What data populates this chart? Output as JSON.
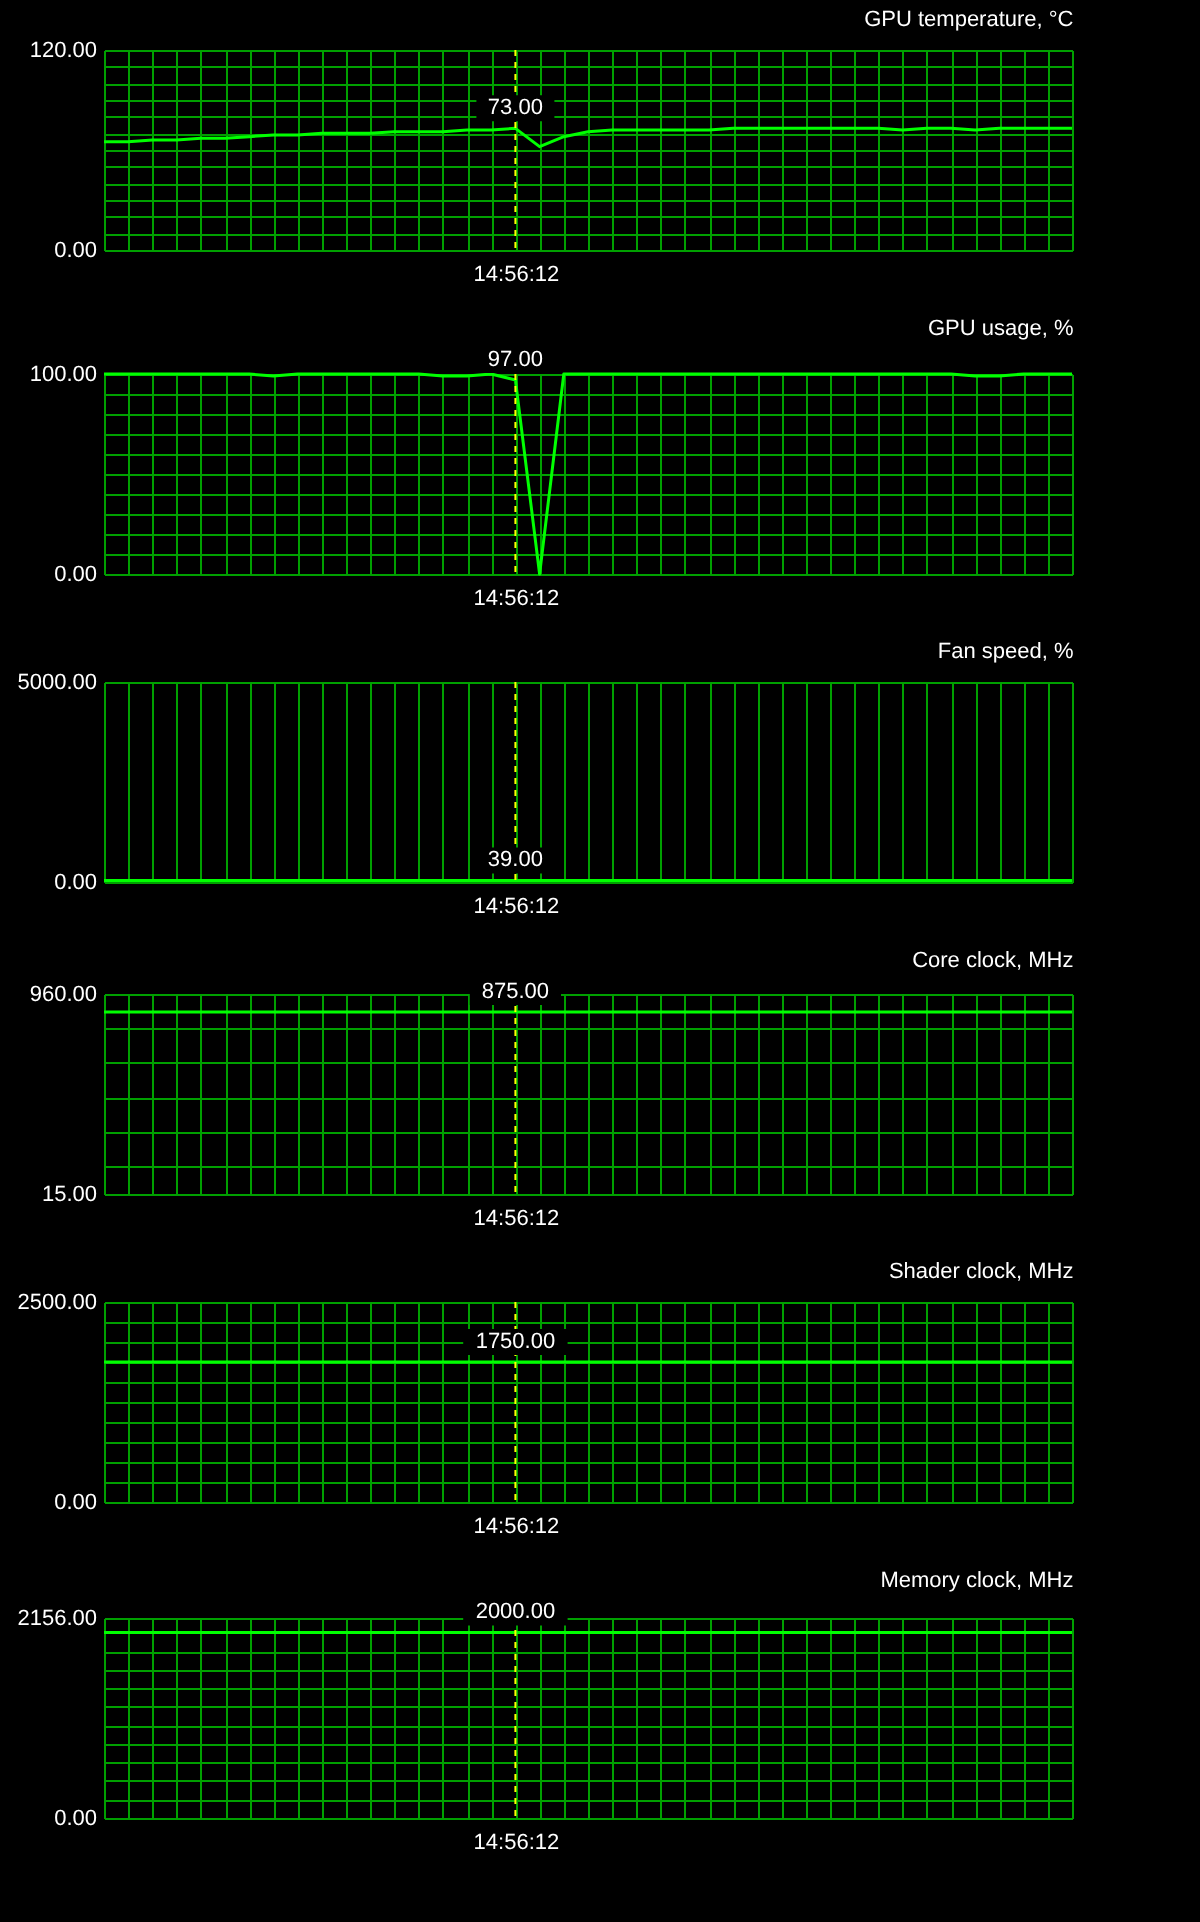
{
  "chart_data": [
    {
      "type": "line",
      "title": "GPU temperature, °C",
      "grid": true,
      "ylim": [
        0,
        120
      ],
      "yticks": [
        {
          "value": 0,
          "label": "0.00"
        },
        {
          "value": 10,
          "label": null
        },
        {
          "value": 20,
          "label": null
        },
        {
          "value": 30,
          "label": null
        },
        {
          "value": 40,
          "label": null
        },
        {
          "value": 50,
          "label": null
        },
        {
          "value": 60,
          "label": null
        },
        {
          "value": 70,
          "label": null
        },
        {
          "value": 80,
          "label": null
        },
        {
          "value": 90,
          "label": null
        },
        {
          "value": 100,
          "label": null
        },
        {
          "value": 110,
          "label": null
        },
        {
          "value": 120,
          "label": "120.00"
        }
      ],
      "categories": [
        null,
        null,
        null,
        null,
        null,
        null,
        null,
        null,
        null,
        null,
        null,
        null,
        null,
        null,
        null,
        null,
        null,
        "14:56:12",
        null,
        null,
        null,
        null,
        null,
        null,
        null,
        null,
        null,
        null,
        null,
        null,
        null,
        null,
        null,
        null,
        null,
        null,
        null,
        null,
        null,
        null,
        null
      ],
      "ref_lines": [
        {
          "axis": "x",
          "value": "14:56:12",
          "color": "#ffff00",
          "line_style": "dashed"
        }
      ],
      "series": [
        {
          "color": "#00ff00",
          "values": [
            65,
            65,
            66,
            66,
            67,
            67,
            68,
            69,
            69,
            70,
            70,
            70,
            71,
            71,
            71,
            72,
            72,
            73,
            62,
            68,
            71,
            72,
            72,
            72,
            72,
            72,
            73,
            73,
            73,
            73,
            73,
            73,
            73,
            72,
            73,
            73,
            72,
            73,
            73,
            73,
            73
          ],
          "value_labels": [
            null,
            null,
            null,
            null,
            null,
            null,
            null,
            null,
            null,
            null,
            null,
            null,
            null,
            null,
            null,
            null,
            null,
            "73.00",
            null,
            null,
            null,
            null,
            null,
            null,
            null,
            null,
            null,
            null,
            null,
            null,
            null,
            null,
            null,
            null,
            null,
            null,
            null,
            null,
            null,
            null,
            null
          ]
        }
      ]
    },
    {
      "type": "line",
      "title": "GPU usage, %",
      "grid": true,
      "ylim": [
        0,
        100
      ],
      "yticks": [
        {
          "value": 0,
          "label": "0.00"
        },
        {
          "value": 10,
          "label": null
        },
        {
          "value": 20,
          "label": null
        },
        {
          "value": 30,
          "label": null
        },
        {
          "value": 40,
          "label": null
        },
        {
          "value": 50,
          "label": null
        },
        {
          "value": 60,
          "label": null
        },
        {
          "value": 70,
          "label": null
        },
        {
          "value": 80,
          "label": null
        },
        {
          "value": 90,
          "label": null
        },
        {
          "value": 100,
          "label": "100.00"
        }
      ],
      "categories": [
        null,
        null,
        null,
        null,
        null,
        null,
        null,
        null,
        null,
        null,
        null,
        null,
        null,
        null,
        null,
        null,
        null,
        "14:56:12",
        null,
        null,
        null,
        null,
        null,
        null,
        null,
        null,
        null,
        null,
        null,
        null,
        null,
        null,
        null,
        null,
        null,
        null,
        null,
        null,
        null,
        null,
        null
      ],
      "ref_lines": [
        {
          "axis": "x",
          "value": "14:56:12",
          "color": "#ffff00",
          "line_style": "dashed"
        }
      ],
      "series": [
        {
          "color": "#00ff00",
          "values": [
            100,
            100,
            100,
            100,
            100,
            100,
            100,
            99,
            100,
            100,
            100,
            100,
            100,
            100,
            99,
            99,
            100,
            97,
            0,
            100,
            100,
            100,
            100,
            100,
            100,
            100,
            100,
            100,
            100,
            100,
            100,
            100,
            100,
            100,
            100,
            100,
            99,
            99,
            100,
            100,
            100
          ],
          "value_labels": [
            null,
            null,
            null,
            null,
            null,
            null,
            null,
            null,
            null,
            null,
            null,
            null,
            null,
            null,
            null,
            null,
            null,
            "97.00",
            null,
            null,
            null,
            null,
            null,
            null,
            null,
            null,
            null,
            null,
            null,
            null,
            null,
            null,
            null,
            null,
            null,
            null,
            null,
            null,
            null,
            null,
            null
          ]
        }
      ]
    },
    {
      "type": "line",
      "title": "Fan speed, %",
      "grid": true,
      "ylim": [
        0,
        5000
      ],
      "yticks": [
        {
          "value": 0,
          "label": "0.00"
        },
        {
          "value": 5000,
          "label": "5000.00"
        }
      ],
      "categories": [
        null,
        null,
        null,
        null,
        null,
        null,
        null,
        null,
        null,
        null,
        null,
        null,
        null,
        null,
        null,
        null,
        null,
        "14:56:12",
        null,
        null,
        null,
        null,
        null,
        null,
        null,
        null,
        null,
        null,
        null,
        null,
        null,
        null,
        null,
        null,
        null,
        null,
        null,
        null,
        null,
        null,
        null
      ],
      "ref_lines": [
        {
          "axis": "x",
          "value": "14:56:12",
          "color": "#ffff00",
          "line_style": "dashed"
        }
      ],
      "series": [
        {
          "color": "#00ff00",
          "values": [
            39,
            39,
            39,
            39,
            39,
            39,
            39,
            39,
            39,
            39,
            39,
            39,
            39,
            39,
            39,
            39,
            39,
            39,
            39,
            39,
            39,
            39,
            39,
            39,
            39,
            39,
            39,
            39,
            39,
            39,
            39,
            39,
            39,
            39,
            39,
            39,
            39,
            39,
            39,
            39,
            39
          ],
          "value_labels": [
            null,
            null,
            null,
            null,
            null,
            null,
            null,
            null,
            null,
            null,
            null,
            null,
            null,
            null,
            null,
            null,
            null,
            "39.00",
            null,
            null,
            null,
            null,
            null,
            null,
            null,
            null,
            null,
            null,
            null,
            null,
            null,
            null,
            null,
            null,
            null,
            null,
            null,
            null,
            null,
            null,
            null
          ]
        }
      ]
    },
    {
      "type": "line",
      "title": "Core clock, MHz",
      "grid": true,
      "ylim": [
        15,
        960
      ],
      "yticks": [
        {
          "value": 15,
          "label": "15.00"
        },
        {
          "value": 150,
          "label": null
        },
        {
          "value": 310,
          "label": null
        },
        {
          "value": 470,
          "label": null
        },
        {
          "value": 635,
          "label": null
        },
        {
          "value": 795,
          "label": null
        },
        {
          "value": 960,
          "label": "960.00"
        }
      ],
      "categories": [
        null,
        null,
        null,
        null,
        null,
        null,
        null,
        null,
        null,
        null,
        null,
        null,
        null,
        null,
        null,
        null,
        null,
        "14:56:12",
        null,
        null,
        null,
        null,
        null,
        null,
        null,
        null,
        null,
        null,
        null,
        null,
        null,
        null,
        null,
        null,
        null,
        null,
        null,
        null,
        null,
        null,
        null
      ],
      "ref_lines": [
        {
          "axis": "x",
          "value": "14:56:12",
          "color": "#ffff00",
          "line_style": "dashed"
        }
      ],
      "series": [
        {
          "color": "#00ff00",
          "values": [
            875,
            875,
            875,
            875,
            875,
            875,
            875,
            875,
            875,
            875,
            875,
            875,
            875,
            875,
            875,
            875,
            875,
            875,
            875,
            875,
            875,
            875,
            875,
            875,
            875,
            875,
            875,
            875,
            875,
            875,
            875,
            875,
            875,
            875,
            875,
            875,
            875,
            875,
            875,
            875,
            875
          ],
          "value_labels": [
            null,
            null,
            null,
            null,
            null,
            null,
            null,
            null,
            null,
            null,
            null,
            null,
            null,
            null,
            null,
            null,
            null,
            "875.00",
            null,
            null,
            null,
            null,
            null,
            null,
            null,
            null,
            null,
            null,
            null,
            null,
            null,
            null,
            null,
            null,
            null,
            null,
            null,
            null,
            null,
            null,
            null
          ]
        }
      ]
    },
    {
      "type": "line",
      "title": "Shader clock, MHz",
      "grid": true,
      "ylim": [
        0,
        2500
      ],
      "yticks": [
        {
          "value": 0,
          "label": "0.00"
        },
        {
          "value": 250,
          "label": null
        },
        {
          "value": 500,
          "label": null
        },
        {
          "value": 750,
          "label": null
        },
        {
          "value": 1000,
          "label": null
        },
        {
          "value": 1250,
          "label": null
        },
        {
          "value": 1500,
          "label": null
        },
        {
          "value": 1750,
          "label": null
        },
        {
          "value": 2000,
          "label": null
        },
        {
          "value": 2250,
          "label": null
        },
        {
          "value": 2500,
          "label": "2500.00"
        }
      ],
      "categories": [
        null,
        null,
        null,
        null,
        null,
        null,
        null,
        null,
        null,
        null,
        null,
        null,
        null,
        null,
        null,
        null,
        null,
        "14:56:12",
        null,
        null,
        null,
        null,
        null,
        null,
        null,
        null,
        null,
        null,
        null,
        null,
        null,
        null,
        null,
        null,
        null,
        null,
        null,
        null,
        null,
        null,
        null
      ],
      "ref_lines": [
        {
          "axis": "x",
          "value": "14:56:12",
          "color": "#ffff00",
          "line_style": "dashed"
        }
      ],
      "series": [
        {
          "color": "#00ff00",
          "values": [
            1750,
            1750,
            1750,
            1750,
            1750,
            1750,
            1750,
            1750,
            1750,
            1750,
            1750,
            1750,
            1750,
            1750,
            1750,
            1750,
            1750,
            1750,
            1750,
            1750,
            1750,
            1750,
            1750,
            1750,
            1750,
            1750,
            1750,
            1750,
            1750,
            1750,
            1750,
            1750,
            1750,
            1750,
            1750,
            1750,
            1750,
            1750,
            1750,
            1750,
            1750
          ],
          "value_labels": [
            null,
            null,
            null,
            null,
            null,
            null,
            null,
            null,
            null,
            null,
            null,
            null,
            null,
            null,
            null,
            null,
            null,
            "1750.00",
            null,
            null,
            null,
            null,
            null,
            null,
            null,
            null,
            null,
            null,
            null,
            null,
            null,
            null,
            null,
            null,
            null,
            null,
            null,
            null,
            null,
            null,
            null
          ]
        }
      ]
    },
    {
      "type": "line",
      "title": "Memory clock, MHz",
      "grid": true,
      "ylim": [
        0,
        2156
      ],
      "yticks": [
        {
          "value": 0,
          "label": "0.00"
        },
        {
          "value": 200,
          "label": null
        },
        {
          "value": 400,
          "label": null
        },
        {
          "value": 600,
          "label": null
        },
        {
          "value": 800,
          "label": null
        },
        {
          "value": 1000,
          "label": null
        },
        {
          "value": 1200,
          "label": null
        },
        {
          "value": 1400,
          "label": null
        },
        {
          "value": 1600,
          "label": null
        },
        {
          "value": 1800,
          "label": null
        },
        {
          "value": 2156,
          "label": "2156.00"
        }
      ],
      "categories": [
        null,
        null,
        null,
        null,
        null,
        null,
        null,
        null,
        null,
        null,
        null,
        null,
        null,
        null,
        null,
        null,
        null,
        "14:56:12",
        null,
        null,
        null,
        null,
        null,
        null,
        null,
        null,
        null,
        null,
        null,
        null,
        null,
        null,
        null,
        null,
        null,
        null,
        null,
        null,
        null,
        null,
        null
      ],
      "ref_lines": [
        {
          "axis": "x",
          "value": "14:56:12",
          "color": "#ffff00",
          "line_style": "dashed"
        }
      ],
      "series": [
        {
          "color": "#00ff00",
          "values": [
            2000,
            2000,
            2000,
            2000,
            2000,
            2000,
            2000,
            2000,
            2000,
            2000,
            2000,
            2000,
            2000,
            2000,
            2000,
            2000,
            2000,
            2000,
            2000,
            2000,
            2000,
            2000,
            2000,
            2000,
            2000,
            2000,
            2000,
            2000,
            2000,
            2000,
            2000,
            2000,
            2000,
            2000,
            2000,
            2000,
            2000,
            2000,
            2000,
            2000,
            2000
          ],
          "value_labels": [
            null,
            null,
            null,
            null,
            null,
            null,
            null,
            null,
            null,
            null,
            null,
            null,
            null,
            null,
            null,
            null,
            null,
            "2000.00",
            null,
            null,
            null,
            null,
            null,
            null,
            null,
            null,
            null,
            null,
            null,
            null,
            null,
            null,
            null,
            null,
            null,
            null,
            null,
            null,
            null,
            null,
            null
          ]
        }
      ]
    }
  ]
}
